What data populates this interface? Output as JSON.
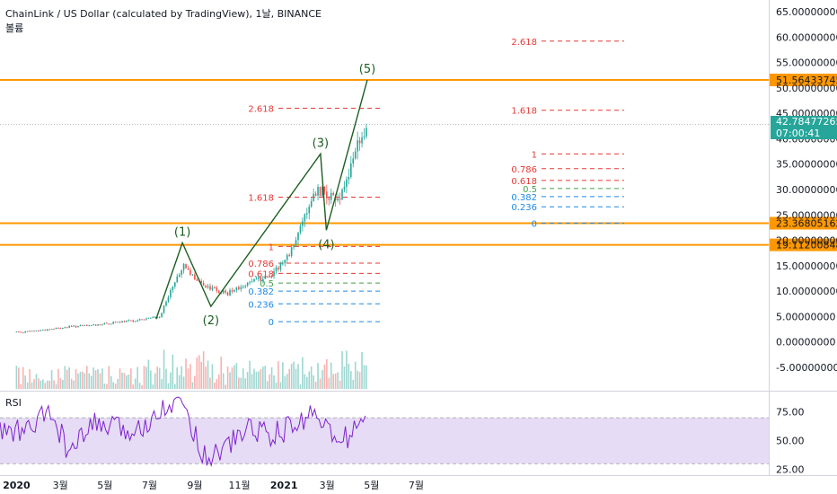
{
  "header": {
    "title": "ChainLink / US Dollar (calculated by TradingView), 1날, BINANCE",
    "volume_label": "볼륨"
  },
  "colors": {
    "up": "#26a69a",
    "down": "#ef5350",
    "wave": "#1b5e20",
    "level": "#ff9800",
    "fib_red": "#e53935",
    "fib_green": "#43a047",
    "fib_blue": "#1e88e5",
    "rsi": "#7e22ce",
    "rsi_band": "#e6dcf5",
    "current_price_bg": "#26a69a"
  },
  "chart_data": [
    {
      "type": "candlestick",
      "title": "ChainLink / US Dollar (calculated by TradingView), 1날, BINANCE",
      "x_ticks": [
        "2020",
        "3월",
        "5월",
        "7월",
        "9월",
        "11월",
        "2021",
        "3월",
        "5월",
        "7월"
      ],
      "y_ticks": [
        "65.00000000",
        "60.00000000",
        "55.00000000",
        "50.00000000",
        "45.00000000",
        "40.00000000",
        "35.00000000",
        "30.00000000",
        "25.00000000",
        "20.00000000",
        "15.00000000",
        "10.00000000",
        "5.00000000",
        "0.00000000",
        "-5.00000000"
      ],
      "ylim": [
        -7,
        66
      ],
      "grid": false,
      "approx_close_path": [
        {
          "date": "2020-01",
          "close": 2.0
        },
        {
          "date": "2020-02",
          "close": 2.5
        },
        {
          "date": "2020-03",
          "close": 3.0
        },
        {
          "date": "2020-04",
          "close": 3.3
        },
        {
          "date": "2020-05",
          "close": 3.8
        },
        {
          "date": "2020-06",
          "close": 4.3
        },
        {
          "date": "2020-07",
          "close": 5.0
        },
        {
          "date": "2020-08",
          "close": 15.0
        },
        {
          "date": "2020-09",
          "close": 11.0
        },
        {
          "date": "2020-10",
          "close": 9.5
        },
        {
          "date": "2020-11",
          "close": 12.0
        },
        {
          "date": "2020-12",
          "close": 13.0
        },
        {
          "date": "2021-01",
          "close": 19.0
        },
        {
          "date": "2021-02",
          "close": 30.0
        },
        {
          "date": "2021-03",
          "close": 28.0
        },
        {
          "date": "2021-04",
          "close": 42.78
        }
      ],
      "horizontal_levels": [
        {
          "label": "51.56433745",
          "value": 51.56433745
        },
        {
          "label": "23.36805162",
          "value": 23.36805162
        },
        {
          "label": "19.11200848",
          "value": 19.11200848
        }
      ],
      "current_price": {
        "label": "42.78477265",
        "countdown": "07:00:41",
        "value": 42.78477265
      },
      "elliott_waves": [
        {
          "label": "(1)",
          "date": "2020-08-15",
          "value": 19.5
        },
        {
          "label": "(2)",
          "date": "2020-09-23",
          "value": 7.0
        },
        {
          "label": "(3)",
          "date": "2021-02-20",
          "value": 37.0
        },
        {
          "label": "(4)",
          "date": "2021-02-28",
          "value": 22.0
        },
        {
          "label": "(5)",
          "date": "2021-04-25",
          "value": 51.56
        }
      ],
      "fib_retracement_1": {
        "levels": [
          {
            "label": "2.618",
            "value": 46.0,
            "color": "red"
          },
          {
            "label": "1.618",
            "value": 28.5,
            "color": "red"
          },
          {
            "label": "1",
            "value": 18.8,
            "color": "red"
          },
          {
            "label": "0.786",
            "value": 15.5,
            "color": "red"
          },
          {
            "label": "0.618",
            "value": 13.5,
            "color": "red"
          },
          {
            "label": "0.5",
            "value": 11.6,
            "color": "green"
          },
          {
            "label": "0.382",
            "value": 10.0,
            "color": "blue"
          },
          {
            "label": "0.236",
            "value": 7.5,
            "color": "blue"
          },
          {
            "label": "0",
            "value": 4.0,
            "color": "blue"
          }
        ]
      },
      "fib_retracement_2": {
        "levels": [
          {
            "label": "2.618",
            "value": 59.2,
            "color": "red"
          },
          {
            "label": "1.618",
            "value": 45.6,
            "color": "red"
          },
          {
            "label": "1",
            "value": 37.0,
            "color": "red"
          },
          {
            "label": "0.786",
            "value": 34.1,
            "color": "red"
          },
          {
            "label": "0.618",
            "value": 31.8,
            "color": "red"
          },
          {
            "label": "0.5",
            "value": 30.2,
            "color": "green"
          },
          {
            "label": "0.382",
            "value": 28.6,
            "color": "blue"
          },
          {
            "label": "0.236",
            "value": 26.6,
            "color": "blue"
          },
          {
            "label": "0",
            "value": 23.4,
            "color": "blue"
          }
        ]
      }
    },
    {
      "type": "line",
      "title": "RSI",
      "y_ticks": [
        "75.00",
        "50.00",
        "25.00"
      ],
      "ylim": [
        20,
        92
      ],
      "band": [
        30,
        70
      ],
      "grid": false,
      "approx_values": [
        {
          "date": "2020-01",
          "value": 58
        },
        {
          "date": "2020-02",
          "value": 75
        },
        {
          "date": "2020-03",
          "value": 38
        },
        {
          "date": "2020-04",
          "value": 65
        },
        {
          "date": "2020-05",
          "value": 60
        },
        {
          "date": "2020-06",
          "value": 58
        },
        {
          "date": "2020-07",
          "value": 80
        },
        {
          "date": "2020-08",
          "value": 85
        },
        {
          "date": "2020-09",
          "value": 35
        },
        {
          "date": "2020-10",
          "value": 45
        },
        {
          "date": "2020-11",
          "value": 62
        },
        {
          "date": "2020-12",
          "value": 55
        },
        {
          "date": "2021-01",
          "value": 62
        },
        {
          "date": "2021-02",
          "value": 78
        },
        {
          "date": "2021-03",
          "value": 45
        },
        {
          "date": "2021-04",
          "value": 72
        }
      ]
    }
  ]
}
